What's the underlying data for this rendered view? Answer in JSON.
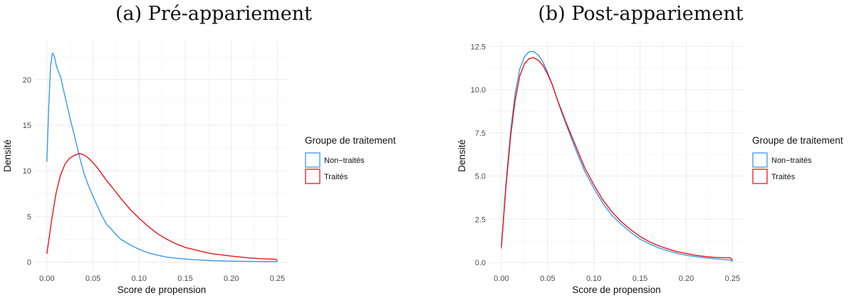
{
  "colors": {
    "non_traites": "#3b9ae1",
    "traites": "#e8141b",
    "grid_major": "#ebebeb",
    "grid_minor": "#f4f4f4"
  },
  "chart_data": [
    {
      "type": "line",
      "title": "(a) Pré-appariement",
      "xlabel": "Score de propension",
      "ylabel": "Densité",
      "xlim": [
        -0.013,
        0.262
      ],
      "ylim": [
        -0.9,
        24.2
      ],
      "xticks": [
        0.0,
        0.05,
        0.1,
        0.15,
        0.2,
        0.25
      ],
      "xtick_labels": [
        "0.00",
        "0.05",
        "0.10",
        "0.15",
        "0.20",
        "0.25"
      ],
      "yticks": [
        0,
        5,
        10,
        15,
        20
      ],
      "ytick_labels": [
        "0",
        "5",
        "10",
        "15",
        "20"
      ],
      "grid": true,
      "legend": {
        "title": "Groupe de traitement",
        "position": "right",
        "entries": [
          "Non−traités",
          "Traités"
        ]
      },
      "series": [
        {
          "name": "Non−traités",
          "x": [
            0.0,
            0.002,
            0.004,
            0.006,
            0.008,
            0.01,
            0.012,
            0.015,
            0.018,
            0.02,
            0.025,
            0.03,
            0.035,
            0.04,
            0.045,
            0.05,
            0.055,
            0.06,
            0.065,
            0.07,
            0.075,
            0.08,
            0.09,
            0.1,
            0.11,
            0.12,
            0.13,
            0.14,
            0.15,
            0.16,
            0.18,
            0.2,
            0.22,
            0.24,
            0.25
          ],
          "y": [
            11.0,
            17.0,
            21.5,
            22.9,
            22.6,
            21.6,
            21.0,
            20.3,
            18.9,
            18.0,
            15.8,
            13.8,
            11.7,
            9.8,
            8.4,
            7.2,
            6.1,
            5.0,
            4.1,
            3.6,
            3.0,
            2.5,
            1.9,
            1.4,
            1.0,
            0.75,
            0.55,
            0.42,
            0.33,
            0.25,
            0.15,
            0.1,
            0.07,
            0.05,
            0.04
          ]
        },
        {
          "name": "Traités",
          "x": [
            0.0,
            0.005,
            0.01,
            0.015,
            0.02,
            0.025,
            0.03,
            0.035,
            0.04,
            0.045,
            0.05,
            0.055,
            0.06,
            0.065,
            0.07,
            0.08,
            0.09,
            0.1,
            0.11,
            0.12,
            0.13,
            0.14,
            0.15,
            0.16,
            0.17,
            0.18,
            0.19,
            0.2,
            0.21,
            0.22,
            0.23,
            0.24,
            0.248,
            0.25
          ],
          "y": [
            0.9,
            4.5,
            7.6,
            9.6,
            10.8,
            11.4,
            11.7,
            11.9,
            11.75,
            11.4,
            10.9,
            10.3,
            9.6,
            8.9,
            8.3,
            7.0,
            5.8,
            4.8,
            3.9,
            3.1,
            2.5,
            2.0,
            1.6,
            1.35,
            1.1,
            0.9,
            0.78,
            0.65,
            0.55,
            0.45,
            0.38,
            0.33,
            0.3,
            0.15
          ]
        }
      ]
    },
    {
      "type": "line",
      "title": "(b) Post-appariement",
      "xlabel": "Score de propension",
      "ylabel": "Densité",
      "xlim": [
        -0.013,
        0.262
      ],
      "ylim": [
        -0.45,
        12.8
      ],
      "xticks": [
        0.0,
        0.05,
        0.1,
        0.15,
        0.2,
        0.25
      ],
      "xtick_labels": [
        "0.00",
        "0.05",
        "0.10",
        "0.15",
        "0.20",
        "0.25"
      ],
      "yticks": [
        0,
        2.5,
        5,
        7.5,
        10,
        12.5
      ],
      "ytick_labels": [
        "0.0",
        "2.5",
        "5.0",
        "7.5",
        "10.0",
        "12.5"
      ],
      "grid": true,
      "legend": {
        "title": "Groupe de traitement",
        "position": "right",
        "entries": [
          "Non−traités",
          "Traités"
        ]
      },
      "series": [
        {
          "name": "Non−traités",
          "x": [
            0.0,
            0.005,
            0.01,
            0.015,
            0.02,
            0.025,
            0.03,
            0.035,
            0.04,
            0.045,
            0.05,
            0.055,
            0.06,
            0.065,
            0.07,
            0.08,
            0.09,
            0.1,
            0.11,
            0.12,
            0.13,
            0.14,
            0.15,
            0.16,
            0.17,
            0.18,
            0.19,
            0.2,
            0.21,
            0.22,
            0.23,
            0.24,
            0.248,
            0.25
          ],
          "y": [
            0.8,
            4.6,
            7.6,
            9.8,
            11.2,
            11.9,
            12.2,
            12.2,
            12.0,
            11.6,
            11.0,
            10.3,
            9.5,
            8.7,
            8.0,
            6.6,
            5.3,
            4.3,
            3.4,
            2.7,
            2.2,
            1.75,
            1.35,
            1.08,
            0.85,
            0.68,
            0.53,
            0.42,
            0.34,
            0.27,
            0.22,
            0.17,
            0.13,
            0.05
          ]
        },
        {
          "name": "Traités",
          "x": [
            0.0,
            0.005,
            0.01,
            0.015,
            0.02,
            0.025,
            0.03,
            0.035,
            0.04,
            0.045,
            0.05,
            0.055,
            0.06,
            0.065,
            0.07,
            0.08,
            0.09,
            0.1,
            0.11,
            0.12,
            0.13,
            0.14,
            0.15,
            0.16,
            0.17,
            0.18,
            0.19,
            0.2,
            0.21,
            0.22,
            0.23,
            0.24,
            0.248,
            0.25
          ],
          "y": [
            0.9,
            4.4,
            7.3,
            9.4,
            10.8,
            11.5,
            11.8,
            11.85,
            11.7,
            11.4,
            10.9,
            10.3,
            9.5,
            8.8,
            8.1,
            6.8,
            5.5,
            4.5,
            3.6,
            2.9,
            2.35,
            1.9,
            1.5,
            1.2,
            0.97,
            0.79,
            0.63,
            0.52,
            0.42,
            0.35,
            0.3,
            0.28,
            0.26,
            0.12
          ]
        }
      ]
    }
  ]
}
